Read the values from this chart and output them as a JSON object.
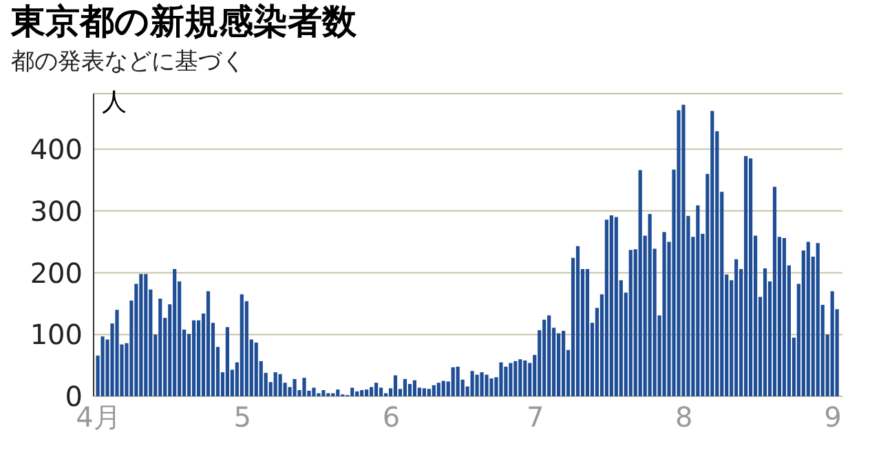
{
  "chart_data": {
    "type": "bar",
    "title": "東京都の新規感染者数",
    "subtitle": "都の発表などに基づく",
    "ylabel": "人",
    "x": [
      "--04-01",
      "--04-02",
      "--04-03",
      "--04-04",
      "--04-05",
      "--04-06",
      "--04-07",
      "--04-08",
      "--04-09",
      "--04-10",
      "--04-11",
      "--04-12",
      "--04-13",
      "--04-14",
      "--04-15",
      "--04-16",
      "--04-17",
      "--04-18",
      "--04-19",
      "--04-20",
      "--04-21",
      "--04-22",
      "--04-23",
      "--04-24",
      "--04-25",
      "--04-26",
      "--04-27",
      "--04-28",
      "--04-29",
      "--04-30",
      "--05-01",
      "--05-02",
      "--05-03",
      "--05-04",
      "--05-05",
      "--05-06",
      "--05-07",
      "--05-08",
      "--05-09",
      "--05-10",
      "--05-11",
      "--05-12",
      "--05-13",
      "--05-14",
      "--05-15",
      "--05-16",
      "--05-17",
      "--05-18",
      "--05-19",
      "--05-20",
      "--05-21",
      "--05-22",
      "--05-23",
      "--05-24",
      "--05-25",
      "--05-26",
      "--05-27",
      "--05-28",
      "--05-29",
      "--05-30",
      "--05-31",
      "--06-01",
      "--06-02",
      "--06-03",
      "--06-04",
      "--06-05",
      "--06-06",
      "--06-07",
      "--06-08",
      "--06-09",
      "--06-10",
      "--06-11",
      "--06-12",
      "--06-13",
      "--06-14",
      "--06-15",
      "--06-16",
      "--06-17",
      "--06-18",
      "--06-19",
      "--06-20",
      "--06-21",
      "--06-22",
      "--06-23",
      "--06-24",
      "--06-25",
      "--06-26",
      "--06-27",
      "--06-28",
      "--06-29",
      "--06-30",
      "--07-01",
      "--07-02",
      "--07-03",
      "--07-04",
      "--07-05",
      "--07-06",
      "--07-07",
      "--07-08",
      "--07-09",
      "--07-10",
      "--07-11",
      "--07-12",
      "--07-13",
      "--07-14",
      "--07-15",
      "--07-16",
      "--07-17",
      "--07-18",
      "--07-19",
      "--07-20",
      "--07-21",
      "--07-22",
      "--07-23",
      "--07-24",
      "--07-25",
      "--07-26",
      "--07-27",
      "--07-28",
      "--07-29",
      "--07-30",
      "--07-31",
      "--08-01",
      "--08-02",
      "--08-03",
      "--08-04",
      "--08-05",
      "--08-06",
      "--08-07",
      "--08-08",
      "--08-09",
      "--08-10",
      "--08-11",
      "--08-12",
      "--08-13",
      "--08-14",
      "--08-15",
      "--08-16",
      "--08-17",
      "--08-18",
      "--08-19",
      "--08-20",
      "--08-21",
      "--08-22",
      "--08-23",
      "--08-24",
      "--08-25",
      "--08-26",
      "--08-27",
      "--08-28",
      "--08-29",
      "--08-30",
      "--08-31",
      "--09-01",
      "--09-02"
    ],
    "values": [
      66,
      97,
      92,
      118,
      140,
      84,
      86,
      155,
      182,
      198,
      198,
      173,
      100,
      158,
      127,
      149,
      206,
      186,
      108,
      101,
      123,
      123,
      134,
      170,
      119,
      80,
      39,
      112,
      43,
      55,
      165,
      154,
      92,
      87,
      57,
      38,
      23,
      39,
      36,
      22,
      15,
      28,
      10,
      30,
      9,
      14,
      5,
      10,
      5,
      5,
      11,
      3,
      2,
      14,
      8,
      10,
      11,
      15,
      22,
      14,
      5,
      13,
      34,
      12,
      28,
      20,
      26,
      14,
      13,
      12,
      18,
      22,
      25,
      24,
      47,
      48,
      27,
      16,
      41,
      35,
      39,
      35,
      29,
      31,
      55,
      48,
      54,
      57,
      60,
      58,
      54,
      67,
      107,
      124,
      131,
      111,
      102,
      106,
      75,
      224,
      243,
      206,
      206,
      119,
      143,
      165,
      286,
      293,
      290,
      188,
      168,
      237,
      238,
      366,
      260,
      295,
      239,
      131,
      266,
      250,
      367,
      463,
      472,
      292,
      258,
      309,
      263,
      360,
      462,
      429,
      331,
      197,
      188,
      222,
      206,
      389,
      385,
      260,
      161,
      207,
      186,
      339,
      258,
      256,
      212,
      95,
      182,
      236,
      250,
      226,
      248,
      148,
      100,
      170,
      141
    ],
    "color": "#1f4e96",
    "xlim": [
      "--03-31",
      "--09-03"
    ],
    "xticks": [
      {
        "value": "--04-01",
        "label": "4月"
      },
      {
        "value": "--05-01",
        "label": "5"
      },
      {
        "value": "--06-01",
        "label": "6"
      },
      {
        "value": "--07-01",
        "label": "7"
      },
      {
        "value": "--08-01",
        "label": "8"
      },
      {
        "value": "--09-01",
        "label": "9"
      }
    ],
    "ylim": [
      0,
      490
    ],
    "yticks": [
      0,
      100,
      200,
      300,
      400
    ],
    "grid": "y",
    "legend": false
  }
}
